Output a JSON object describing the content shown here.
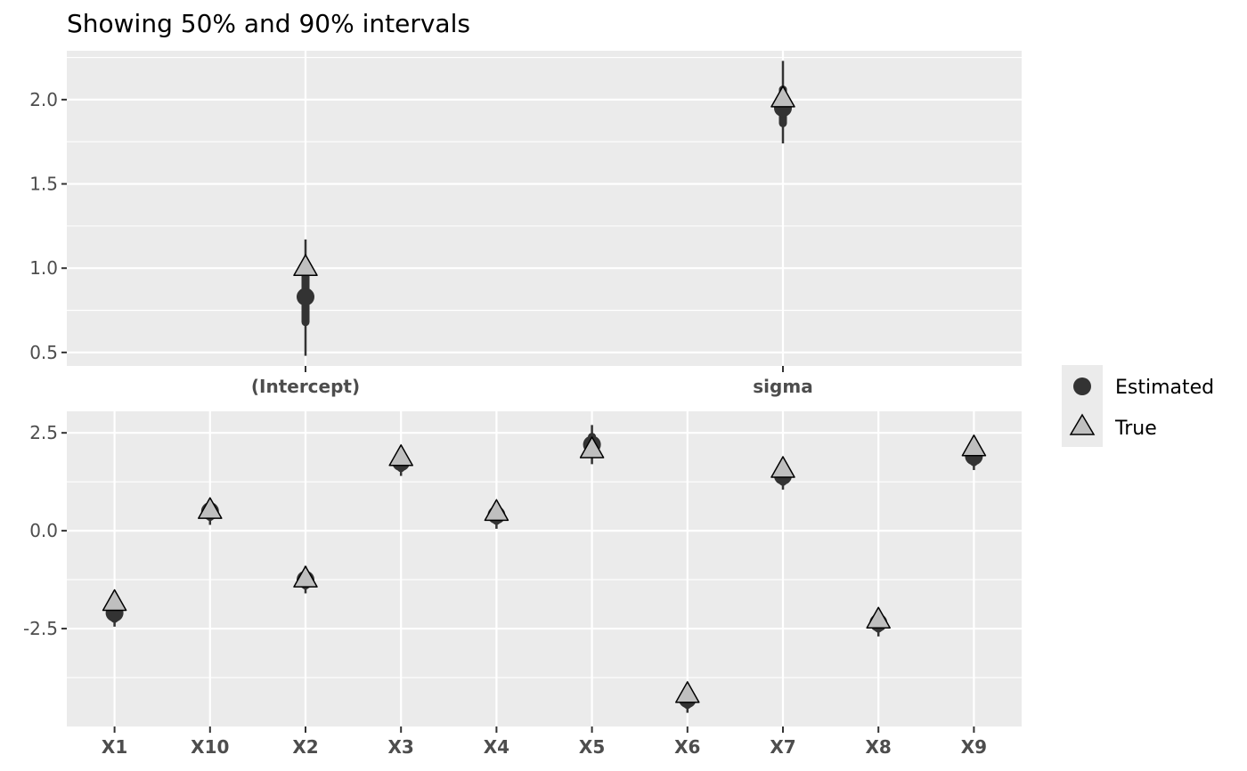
{
  "chart_data": {
    "type": "scatter",
    "title": "Showing 50% and 90% intervals",
    "legend": {
      "placement": "right",
      "entries": [
        {
          "label": "Estimated",
          "shape": "circle",
          "color": "#333333"
        },
        {
          "label": "True",
          "shape": "triangle",
          "color": "#c0c0c0",
          "stroke": "#000000"
        }
      ]
    },
    "colors": {
      "panel_bg": "#ebebeb",
      "grid": "#ffffff",
      "estimate": "#333333",
      "true_fill": "#bfbfbf"
    },
    "panels": [
      {
        "categories": [
          "(Intercept)",
          "sigma"
        ],
        "ylim": [
          0.42,
          2.29
        ],
        "yticks": [
          0.5,
          1.0,
          1.5,
          2.0
        ],
        "ytick_labels": [
          "0.5",
          "1.0",
          "1.5",
          "2.0"
        ],
        "estimated": [
          0.83,
          1.95
        ],
        "ci50": [
          [
            0.68,
            0.95
          ],
          [
            1.86,
            2.06
          ]
        ],
        "ci90": [
          [
            0.48,
            1.17
          ],
          [
            1.74,
            2.23
          ]
        ],
        "true": [
          1.0,
          2.0
        ]
      },
      {
        "categories": [
          "X1",
          "X10",
          "X2",
          "X3",
          "X4",
          "X5",
          "X6",
          "X7",
          "X8",
          "X9"
        ],
        "ylim": [
          -5.0,
          3.05
        ],
        "yticks": [
          -2.5,
          0.0,
          2.5
        ],
        "ytick_labels": [
          "-2.5",
          "0.0",
          "2.5"
        ],
        "estimated": [
          -2.1,
          0.5,
          -1.25,
          1.75,
          0.4,
          2.2,
          -4.3,
          1.4,
          -2.35,
          1.9
        ],
        "ci50": [
          [
            -2.25,
            -1.95
          ],
          [
            0.35,
            0.65
          ],
          [
            -1.4,
            -1.1
          ],
          [
            1.6,
            1.9
          ],
          [
            0.25,
            0.55
          ],
          [
            2.0,
            2.4
          ],
          [
            -4.45,
            -4.15
          ],
          [
            1.25,
            1.55
          ],
          [
            -2.5,
            -2.2
          ],
          [
            1.75,
            2.05
          ]
        ],
        "ci90": [
          [
            -2.45,
            -1.75
          ],
          [
            0.15,
            0.8
          ],
          [
            -1.6,
            -0.9
          ],
          [
            1.4,
            2.05
          ],
          [
            0.05,
            0.75
          ],
          [
            1.7,
            2.7
          ],
          [
            -4.65,
            -3.95
          ],
          [
            1.05,
            1.75
          ],
          [
            -2.7,
            -2.0
          ],
          [
            1.55,
            2.25
          ]
        ],
        "true": [
          -1.85,
          0.5,
          -1.25,
          1.85,
          0.45,
          2.05,
          -4.2,
          1.55,
          -2.3,
          2.1
        ]
      }
    ]
  }
}
